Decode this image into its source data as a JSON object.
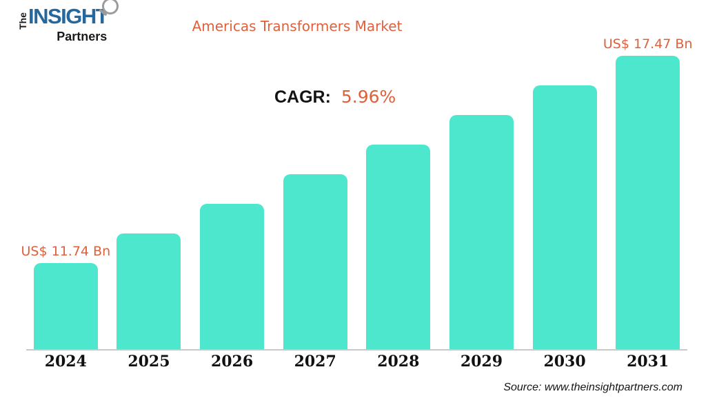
{
  "logo": {
    "vertical_word": "The",
    "main_word": "INSIGHT",
    "sub_word": "Partners"
  },
  "header": {
    "title": "Americas Transformers Market"
  },
  "annotation": {
    "cagr_label": "CAGR:",
    "cagr_value": "5.96%"
  },
  "footer": {
    "source": "Source: www.theinsightpartners.com"
  },
  "colors": {
    "bar_teal": "#4DE7CE",
    "accent_orange": "#E0603C",
    "logo_blue": "#26689B",
    "text_dark": "#141414",
    "axis_gray": "#C9C9C9",
    "magnifier_gray": "#9C9C9C"
  },
  "chart_data": {
    "type": "bar",
    "title": "Americas Transformers Market",
    "categories": [
      "2024",
      "2025",
      "2026",
      "2027",
      "2028",
      "2029",
      "2030",
      "2031"
    ],
    "values": [
      11.74,
      12.56,
      13.38,
      14.2,
      15.01,
      15.83,
      16.65,
      17.47
    ],
    "unit": "US$ Bn",
    "point_labels": [
      "US$ 11.74 Bn",
      "",
      "",
      "",
      "",
      "",
      "",
      "US$ 17.47 Bn"
    ],
    "cagr": "5.96%",
    "xlabel": "",
    "ylabel": "",
    "grid": false,
    "legend": false,
    "y_axis_visible": false,
    "baseline_note": "value axis truncated; bars not zero-based"
  }
}
